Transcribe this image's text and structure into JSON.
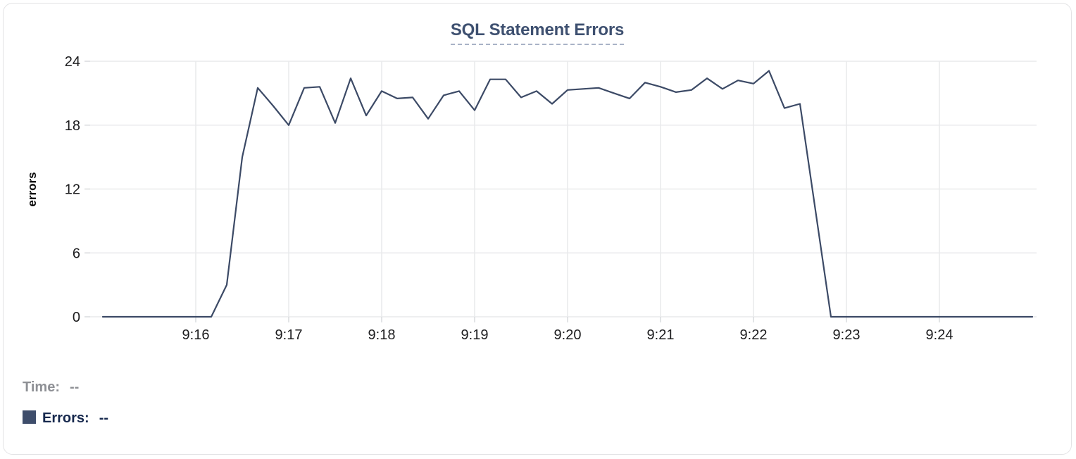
{
  "card": {
    "title": "SQL Statement Errors"
  },
  "tooltip": {
    "time_label": "Time:",
    "time_value": "--",
    "errors_label": "Errors:",
    "errors_value": "--"
  },
  "colors": {
    "line": "#3c4a66",
    "swatch": "#3e4d6b",
    "title": "#3e5070",
    "title_underline": "#a9b3c7",
    "grid": "#e9eaec",
    "tick_stub": "#d9dadd",
    "axis_text": "#1c1c1e",
    "time_label": "#8e9095",
    "errors_label": "#16284d"
  },
  "chart_data": {
    "type": "line",
    "title": "SQL Statement Errors",
    "xlabel": "",
    "ylabel": "errors",
    "ylim": [
      0,
      24
    ],
    "yticks": [
      0,
      6,
      12,
      18,
      24
    ],
    "xtick_labels": [
      "9:16",
      "9:17",
      "9:18",
      "9:19",
      "9:20",
      "9:21",
      "9:22",
      "9:23",
      "9:24"
    ],
    "grid": true,
    "legend_position": "below-left",
    "series_name": "Errors",
    "x": [
      "9:15:00",
      "9:15:10",
      "9:15:20",
      "9:15:30",
      "9:15:40",
      "9:15:50",
      "9:16:00",
      "9:16:10",
      "9:16:20",
      "9:16:30",
      "9:16:40",
      "9:16:50",
      "9:17:00",
      "9:17:10",
      "9:17:20",
      "9:17:30",
      "9:17:40",
      "9:17:50",
      "9:18:00",
      "9:18:10",
      "9:18:20",
      "9:18:30",
      "9:18:40",
      "9:18:50",
      "9:19:00",
      "9:19:10",
      "9:19:20",
      "9:19:30",
      "9:19:40",
      "9:19:50",
      "9:20:00",
      "9:20:10",
      "9:20:20",
      "9:20:30",
      "9:20:40",
      "9:20:50",
      "9:21:00",
      "9:21:10",
      "9:21:20",
      "9:21:30",
      "9:21:40",
      "9:21:50",
      "9:22:00",
      "9:22:10",
      "9:22:20",
      "9:22:30",
      "9:22:40",
      "9:22:50",
      "9:23:00",
      "9:23:10",
      "9:23:20",
      "9:23:30",
      "9:23:40",
      "9:23:50",
      "9:24:00",
      "9:24:10",
      "9:24:20",
      "9:24:30",
      "9:24:40",
      "9:24:50",
      "9:25:00"
    ],
    "values": [
      0,
      0,
      0,
      0,
      0,
      0,
      0,
      0,
      3,
      15,
      21.5,
      19.8,
      18,
      21.5,
      21.6,
      18.2,
      22.4,
      18.9,
      21.2,
      20.5,
      20.6,
      18.6,
      20.8,
      21.2,
      19.4,
      22.3,
      22.3,
      20.6,
      21.2,
      20,
      21.3,
      21.4,
      21.5,
      21,
      20.5,
      22,
      21.6,
      21.1,
      21.3,
      22.4,
      21.4,
      22.2,
      21.9,
      23.1,
      19.6,
      20,
      10,
      0,
      0,
      0,
      0,
      0,
      0,
      0,
      0,
      0,
      0,
      0,
      0,
      0,
      0
    ]
  }
}
